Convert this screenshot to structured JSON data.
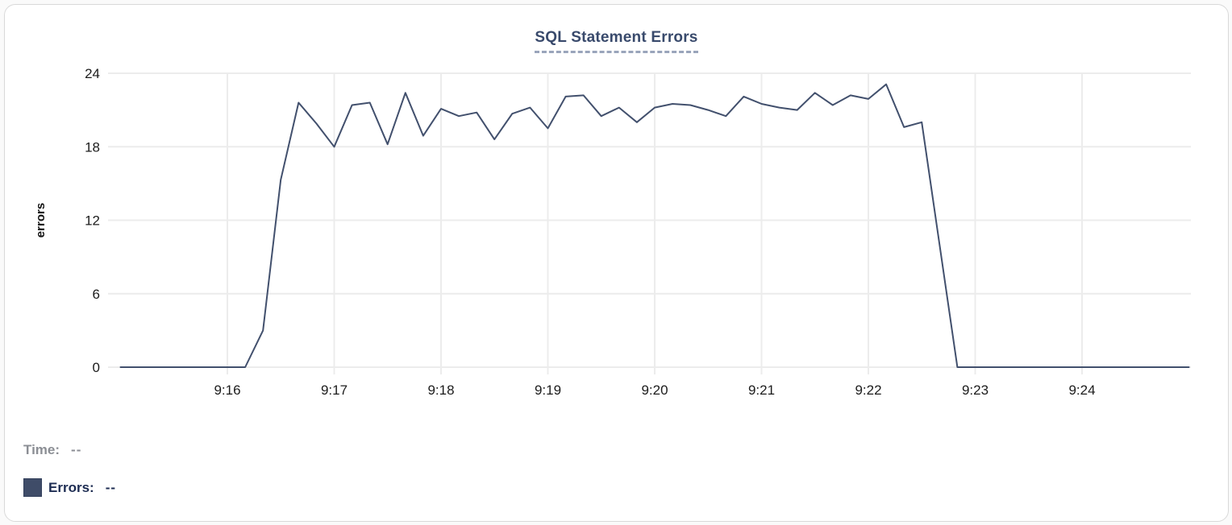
{
  "header": {
    "title": "SQL Statement Errors"
  },
  "tooltip": {
    "time_label": "Time:",
    "time_value": "--",
    "errors_label": "Errors:",
    "errors_value": "--"
  },
  "colors": {
    "line": "#42506d",
    "title_text": "#394a6c",
    "grid": "#ececec",
    "tick_text": "#1c1c1c",
    "axis_label_text": "#111111",
    "time_text": "#8b8e94",
    "errors_text": "#1d2c52",
    "legend_swatch": "#3f4c68"
  },
  "chart_data": {
    "type": "line",
    "title": "SQL Statement Errors",
    "xlabel": "",
    "ylabel": "errors",
    "series_name": "Errors",
    "x_start": "9:15:00",
    "x_end": "9:25:00",
    "interval_seconds": 10,
    "x_tick_labels": [
      "9:16",
      "9:17",
      "9:18",
      "9:19",
      "9:20",
      "9:21",
      "9:22",
      "9:23",
      "9:24"
    ],
    "y_ticks": [
      0,
      6,
      12,
      18,
      24
    ],
    "ylim": [
      0,
      24
    ],
    "grid": true,
    "legend_position": "bottom-left",
    "values": [
      0,
      0,
      0,
      0,
      0,
      0,
      0,
      0,
      3,
      15.3,
      21.6,
      19.9,
      18,
      21.4,
      21.6,
      18.2,
      22.4,
      18.9,
      21.1,
      20.5,
      20.8,
      18.6,
      20.7,
      21.2,
      19.5,
      22.1,
      22.2,
      20.5,
      21.2,
      20,
      21.2,
      21.5,
      21.4,
      21,
      20.5,
      22.1,
      21.5,
      21.2,
      21,
      22.4,
      21.4,
      22.2,
      21.9,
      23.1,
      19.6,
      20,
      10,
      0,
      0,
      0,
      0,
      0,
      0,
      0,
      0,
      0,
      0,
      0,
      0,
      0,
      0
    ]
  }
}
